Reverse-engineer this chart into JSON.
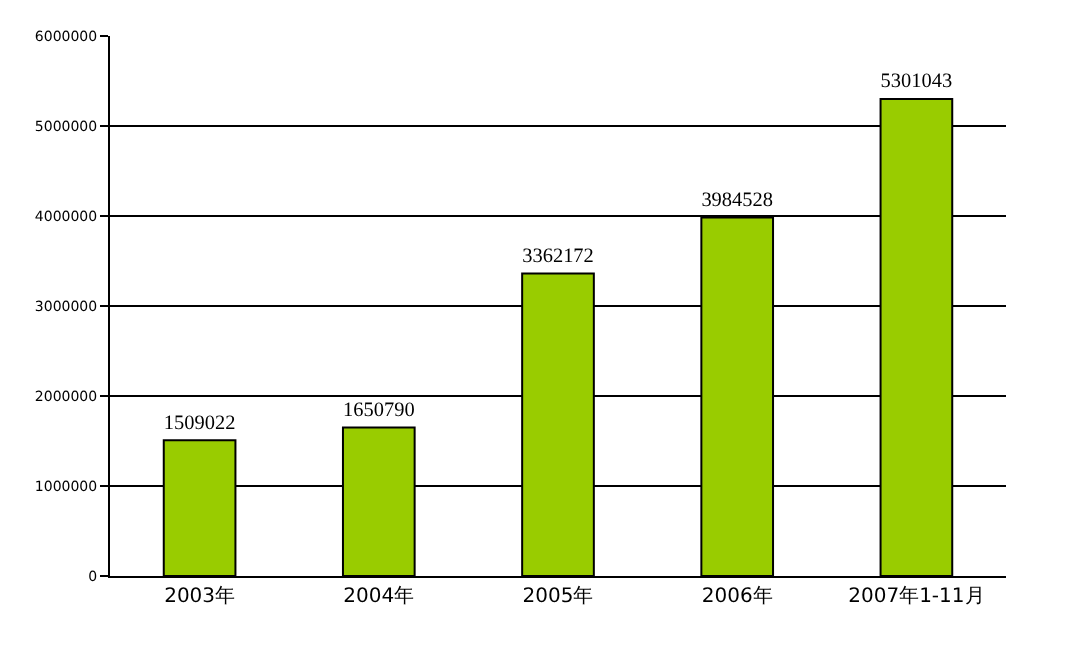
{
  "chart_data": {
    "type": "bar",
    "categories": [
      "2003年",
      "2004年",
      "2005年",
      "2006年",
      "2007年1-11月"
    ],
    "values": [
      1509022,
      1650790,
      3362172,
      3984528,
      5301043
    ],
    "color": "#99cc00",
    "data_labels": true,
    "ylim": [
      0,
      6000000
    ],
    "yticks": [
      0,
      1000000,
      2000000,
      3000000,
      4000000,
      5000000,
      6000000
    ],
    "grid": "y",
    "legend": false
  }
}
